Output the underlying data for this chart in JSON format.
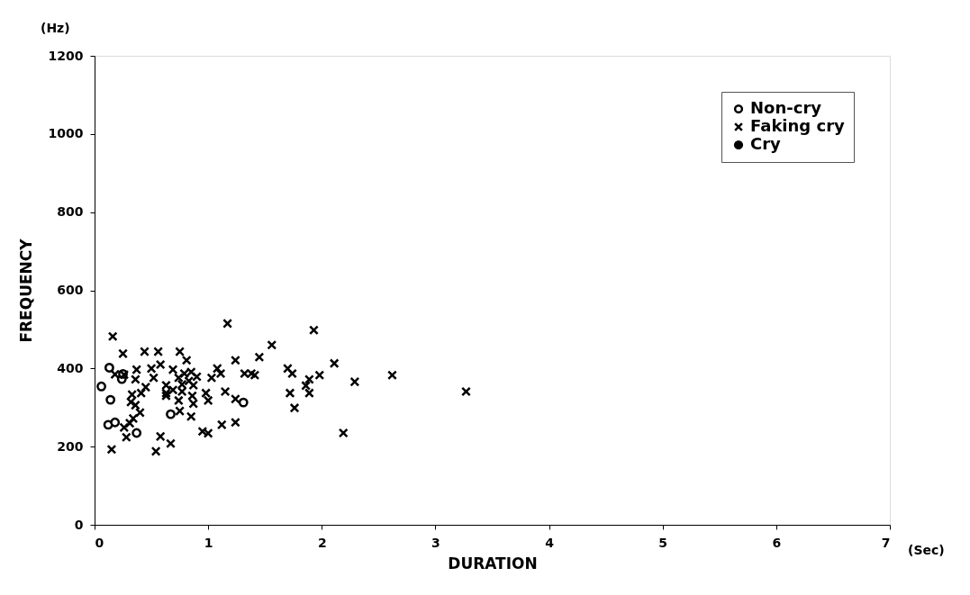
{
  "chart_data": {
    "type": "scatter",
    "xlabel": "DURATION",
    "ylabel": "FREQUENCY",
    "annotations": [
      "(Hz)",
      "(Sec)"
    ],
    "xlim": [
      0,
      7
    ],
    "xticks": [
      0,
      1,
      2,
      3,
      4,
      5,
      6,
      7
    ],
    "ylim": [
      0,
      1200
    ],
    "yticks": [
      0,
      200,
      400,
      600,
      800,
      1000,
      1200
    ],
    "grid": false,
    "legend": "top right",
    "series": [
      {
        "name": "Non-cry",
        "color": "#000000",
        "marker": "circle",
        "x": [
          0.13,
          0.06,
          0.14,
          0.24,
          0.25,
          0.12,
          0.18,
          0.37,
          0.67,
          1.31
        ],
        "values": [
          402,
          354,
          320,
          373,
          386,
          256,
          262,
          235,
          283,
          313
        ]
      },
      {
        "name": "Faking cry",
        "color": "#000000",
        "marker": "cross",
        "x": [
          0.16,
          0.15,
          0.25,
          0.44,
          0.56,
          0.75,
          0.81,
          1.17,
          1.24,
          0.37,
          0.5,
          0.58,
          0.52,
          0.18,
          0.26,
          0.36,
          0.69,
          1.08,
          1.11,
          1.03,
          1.32,
          0.74,
          0.79,
          0.85,
          0.9,
          0.83,
          0.77,
          0.87,
          0.63,
          0.45,
          0.41,
          0.33,
          0.63,
          0.69,
          0.77,
          0.98,
          1.15,
          0.86,
          0.32,
          0.36,
          0.63,
          0.74,
          0.87,
          1.0,
          1.24,
          0.4,
          0.34,
          0.31,
          0.26,
          0.75,
          0.85,
          0.28,
          0.58,
          0.67,
          0.54,
          0.95,
          1.0,
          1.12,
          1.24,
          1.93,
          1.56,
          1.45,
          2.11,
          1.38,
          1.41,
          1.7,
          1.74,
          1.98,
          1.89,
          1.86,
          1.89,
          1.72,
          1.76,
          2.29,
          2.62,
          2.19,
          3.27
        ],
        "values": [
          482,
          193,
          438,
          443,
          443,
          443,
          421,
          515,
          421,
          397,
          400,
          410,
          376,
          385,
          384,
          372,
          397,
          400,
          387,
          376,
          387,
          376,
          387,
          391,
          379,
          368,
          359,
          357,
          357,
          352,
          337,
          333,
          337,
          345,
          341,
          337,
          341,
          330,
          314,
          306,
          330,
          318,
          310,
          318,
          322,
          287,
          272,
          260,
          249,
          291,
          277,
          224,
          226,
          208,
          188,
          239,
          234,
          256,
          262,
          498,
          460,
          429,
          413,
          387,
          383,
          400,
          387,
          383,
          372,
          356,
          337,
          337,
          299,
          366,
          383,
          235,
          341
        ]
      },
      {
        "name": "Cry",
        "color": "#000000",
        "marker": "circle"
      }
    ]
  }
}
